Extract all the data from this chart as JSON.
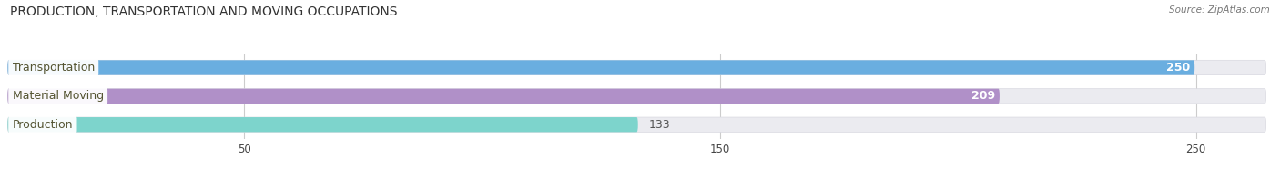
{
  "title": "PRODUCTION, TRANSPORTATION AND MOVING OCCUPATIONS",
  "source_text": "Source: ZipAtlas.com",
  "categories": [
    "Transportation",
    "Material Moving",
    "Production"
  ],
  "values": [
    250,
    209,
    133
  ],
  "bar_colors": [
    "#6aaee0",
    "#b090c8",
    "#7dd4cc"
  ],
  "bar_track_color": "#ebebf0",
  "bar_track_edge": "#d8d8e0",
  "xlim_max": 265,
  "xticks": [
    50,
    150,
    250
  ],
  "figsize": [
    14.06,
    1.96
  ],
  "dpi": 100,
  "title_fontsize": 10,
  "label_fontsize": 9,
  "value_fontsize": 9,
  "bg_color": "#ffffff",
  "label_text_color": "#555533",
  "value_color_inside": "#ffffff",
  "value_color_outside": "#555555"
}
